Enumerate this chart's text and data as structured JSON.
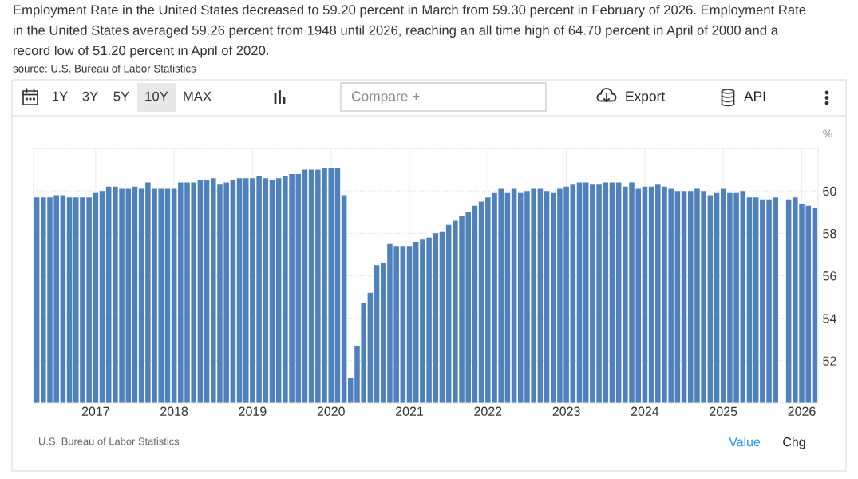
{
  "chart_data": {
    "type": "bar",
    "title": "Employment Rate in the United States decreased to 59.20 percent in March from 59.30 percent in February of 2026. Employment Rate in the United States averaged 59.26 percent from 1948 until 2026, reaching an all time high of 64.70 percent in April of 2000 and a record low of 51.20 percent in April of 2020.",
    "ylabel": "%",
    "annotations": [
      "source: U.S. Bureau of Labor Statistics",
      "1Y",
      "3Y",
      "5Y",
      "10Y",
      "MAX",
      "Compare +",
      "Export",
      "API",
      "U.S. Bureau of Labor Statistics",
      "Value",
      "Chg"
    ],
    "categories": [
      null,
      null,
      null,
      null,
      null,
      null,
      null,
      null,
      null,
      "2017",
      null,
      null,
      null,
      null,
      null,
      null,
      null,
      null,
      null,
      null,
      null,
      "2018",
      null,
      null,
      null,
      null,
      null,
      null,
      null,
      null,
      null,
      null,
      null,
      "2019",
      null,
      null,
      null,
      null,
      null,
      null,
      null,
      null,
      null,
      null,
      null,
      "2020",
      null,
      null,
      null,
      null,
      null,
      null,
      null,
      null,
      null,
      null,
      null,
      "2021",
      null,
      null,
      null,
      null,
      null,
      null,
      null,
      null,
      null,
      null,
      null,
      "2022",
      null,
      null,
      null,
      null,
      null,
      null,
      null,
      null,
      null,
      null,
      null,
      "2023",
      null,
      null,
      null,
      null,
      null,
      null,
      null,
      null,
      null,
      null,
      null,
      "2024",
      null,
      null,
      null,
      null,
      null,
      null,
      null,
      null,
      null,
      null,
      null,
      "2025",
      null,
      null,
      null,
      null,
      null,
      null,
      null,
      null,
      null,
      null,
      null,
      "2026",
      null,
      null
    ],
    "values": [
      59.7,
      59.7,
      59.7,
      59.8,
      59.8,
      59.7,
      59.7,
      59.7,
      59.7,
      59.9,
      60.0,
      60.2,
      60.2,
      60.1,
      60.1,
      60.2,
      60.1,
      60.4,
      60.1,
      60.1,
      60.1,
      60.1,
      60.4,
      60.4,
      60.4,
      60.5,
      60.5,
      60.6,
      60.3,
      60.4,
      60.5,
      60.6,
      60.6,
      60.6,
      60.7,
      60.6,
      60.5,
      60.6,
      60.7,
      60.8,
      60.8,
      61.0,
      61.0,
      61.0,
      61.1,
      61.1,
      61.1,
      59.8,
      51.2,
      52.7,
      54.7,
      55.2,
      56.5,
      56.6,
      57.5,
      57.4,
      57.4,
      57.4,
      57.6,
      57.7,
      57.8,
      58.0,
      58.1,
      58.4,
      58.6,
      58.8,
      59.0,
      59.3,
      59.5,
      59.7,
      59.9,
      60.1,
      59.9,
      60.1,
      59.9,
      60.0,
      60.1,
      60.1,
      60.0,
      59.9,
      60.1,
      60.2,
      60.3,
      60.4,
      60.4,
      60.3,
      60.3,
      60.4,
      60.4,
      60.4,
      60.2,
      60.4,
      60.1,
      60.2,
      60.2,
      60.3,
      60.2,
      60.1,
      60.0,
      60.0,
      60.0,
      60.1,
      60.0,
      59.8,
      59.9,
      60.1,
      59.9,
      59.9,
      60.0,
      59.7,
      59.7,
      59.6,
      59.6,
      59.7,
      null,
      59.6,
      59.7,
      59.4,
      59.3,
      59.2
    ],
    "color": "#4f81bd",
    "ylim": [
      50,
      62
    ],
    "yticks": [
      52,
      54,
      56,
      58,
      60,
      {
        "value": 62,
        "label": null
      }
    ],
    "grid": true
  }
}
